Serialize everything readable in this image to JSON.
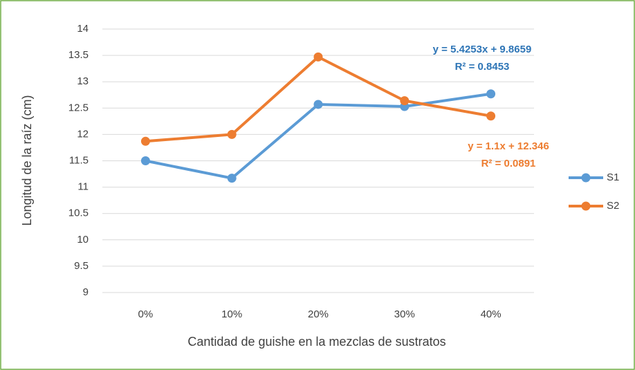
{
  "chart_data": {
    "type": "line",
    "x_label": "Cantidad de guishe en la mezclas de sustratos",
    "y_label": "Longitud de la raíz (cm)",
    "categories": [
      "0%",
      "10%",
      "20%",
      "30%",
      "40%"
    ],
    "series": [
      {
        "name": "S1",
        "color": "#5b9bd5",
        "values": [
          11.5,
          11.17,
          12.57,
          12.53,
          12.77
        ]
      },
      {
        "name": "S2",
        "color": "#ed7d31",
        "values": [
          11.87,
          12.0,
          13.47,
          12.64,
          12.35
        ]
      }
    ],
    "ylim": [
      9,
      14
    ],
    "yticks": [
      9,
      9.5,
      10,
      10.5,
      11,
      11.5,
      12,
      12.5,
      13,
      13.5,
      14
    ],
    "grid": true,
    "legend": "right",
    "annotations": [
      {
        "lines": [
          "y = 5.4253x + 9.8659",
          "R² = 0.8453"
        ],
        "color": "#2e75b6"
      },
      {
        "lines": [
          "y = 1.1x + 12.346",
          "R² = 0.0891"
        ],
        "color": "#ed7d31"
      }
    ]
  }
}
